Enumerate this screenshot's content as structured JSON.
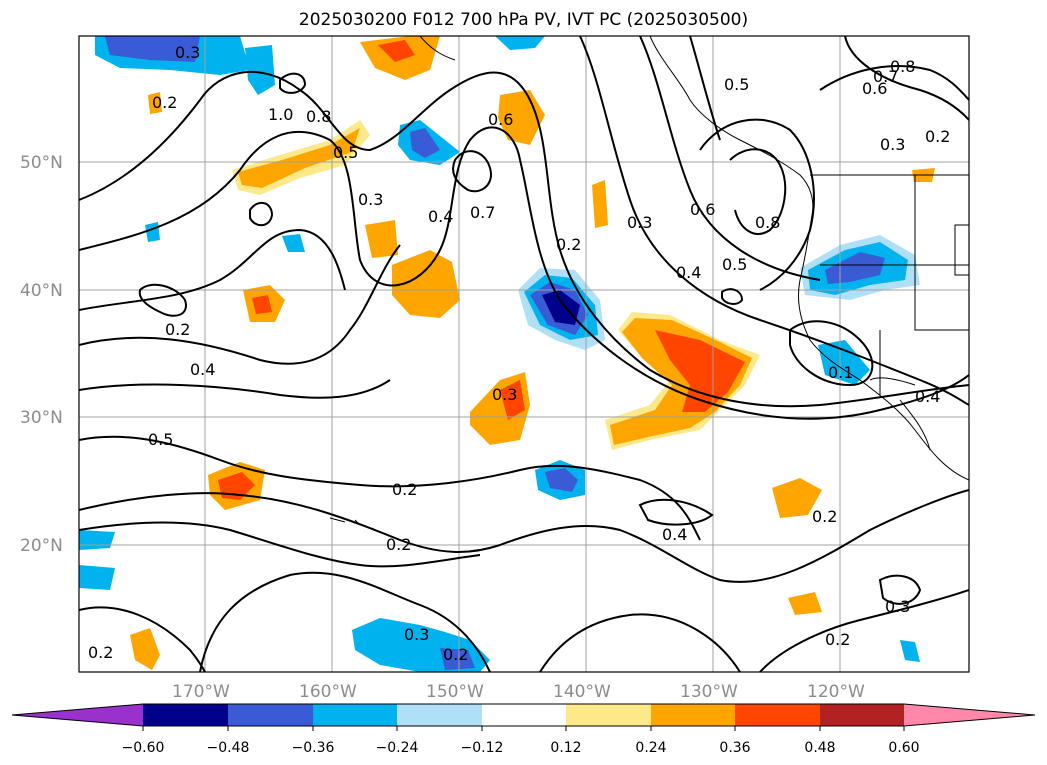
{
  "title": "2025030200 F012 700 hPa PV, IVT PC (2025030500)",
  "map": {
    "lat_labels": [
      "50°N",
      "40°N",
      "30°N",
      "20°N"
    ],
    "lon_labels": [
      "170°W",
      "160°W",
      "150°W",
      "140°W",
      "130°W",
      "120°W"
    ],
    "contour_labels": [
      "0.3",
      "0.2",
      "1.0",
      "0.8",
      "0.5",
      "0.3",
      "0.4",
      "0.7",
      "0.6",
      "0.2",
      "0.3",
      "0.4",
      "0.5",
      "0.6",
      "0.8",
      "0.5",
      "0.8",
      "0.7",
      "0.6",
      "0.3",
      "0.2",
      "0.2",
      "0.4",
      "0.5",
      "0.3",
      "0.2",
      "0.2",
      "0.4",
      "0.2",
      "0.3",
      "0.2",
      "0.2",
      "0.3",
      "0.2",
      "0.1",
      "0.4"
    ],
    "colors": {
      "coast": "#000000",
      "grid": "#a0a0a0"
    }
  },
  "colorbar": {
    "ticks": [
      "−0.60",
      "−0.48",
      "−0.36",
      "−0.24",
      "−0.12",
      "0.12",
      "0.24",
      "0.36",
      "0.48",
      "0.60"
    ],
    "colors": [
      "#9932cc",
      "#00008b",
      "#3a5bd6",
      "#00b2ee",
      "#b0e0f8",
      "#ffffff",
      "#fde98a",
      "#ffa500",
      "#ff4500",
      "#b22222",
      "#ff88aa"
    ]
  }
}
